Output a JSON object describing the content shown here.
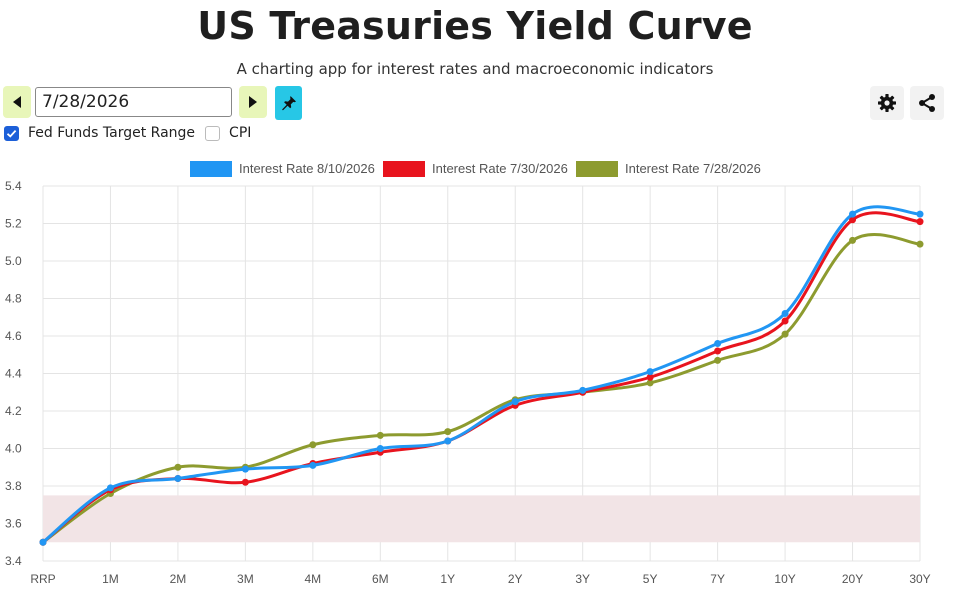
{
  "header": {
    "title": "US Treasuries Yield Curve",
    "subtitle": "A charting app for interest rates and macroeconomic indicators"
  },
  "controls": {
    "date_value": "7/28/2026",
    "prev_icon": "arrow-left-icon",
    "next_icon": "arrow-right-icon",
    "pin_icon": "pin-icon",
    "settings_icon": "gear-icon",
    "share_icon": "share-icon",
    "checkboxes": [
      {
        "label": "Fed Funds Target Range",
        "checked": true
      },
      {
        "label": "CPI",
        "checked": false
      }
    ]
  },
  "colors": {
    "series_blue": "#2196f3",
    "series_red": "#e8141e",
    "series_olive": "#8d9b2f",
    "fed_band": "#f2e4e6",
    "button_green": "#e8f6b9",
    "button_cyan": "#27c7e6",
    "checkbox_blue": "#1c5fd8"
  },
  "chart_data": {
    "type": "line",
    "categories": [
      "RRP",
      "1M",
      "2M",
      "3M",
      "4M",
      "6M",
      "1Y",
      "2Y",
      "3Y",
      "5Y",
      "7Y",
      "10Y",
      "20Y",
      "30Y"
    ],
    "ylim": [
      3.4,
      5.4
    ],
    "yticks": [
      "3.4",
      "3.6",
      "3.8",
      "4.0",
      "4.2",
      "4.4",
      "4.6",
      "4.8",
      "5.0",
      "5.2",
      "5.4"
    ],
    "grid": true,
    "legend_position": "top",
    "fed_funds_range": [
      3.5,
      3.75
    ],
    "series": [
      {
        "name": "Interest Rate 8/10/2026",
        "color": "#2196f3",
        "values": [
          3.5,
          3.79,
          3.84,
          3.89,
          3.91,
          4.0,
          4.04,
          4.25,
          4.31,
          4.41,
          4.56,
          4.72,
          5.25,
          5.25
        ]
      },
      {
        "name": "Interest Rate 7/30/2026",
        "color": "#e8141e",
        "values": [
          3.5,
          3.78,
          3.84,
          3.82,
          3.92,
          3.98,
          4.04,
          4.23,
          4.3,
          4.38,
          4.52,
          4.68,
          5.22,
          5.21
        ]
      },
      {
        "name": "Interest Rate 7/28/2026",
        "color": "#8d9b2f",
        "values": [
          3.5,
          3.76,
          3.9,
          3.9,
          4.02,
          4.07,
          4.09,
          4.26,
          4.3,
          4.35,
          4.47,
          4.61,
          5.11,
          5.09
        ]
      }
    ]
  }
}
